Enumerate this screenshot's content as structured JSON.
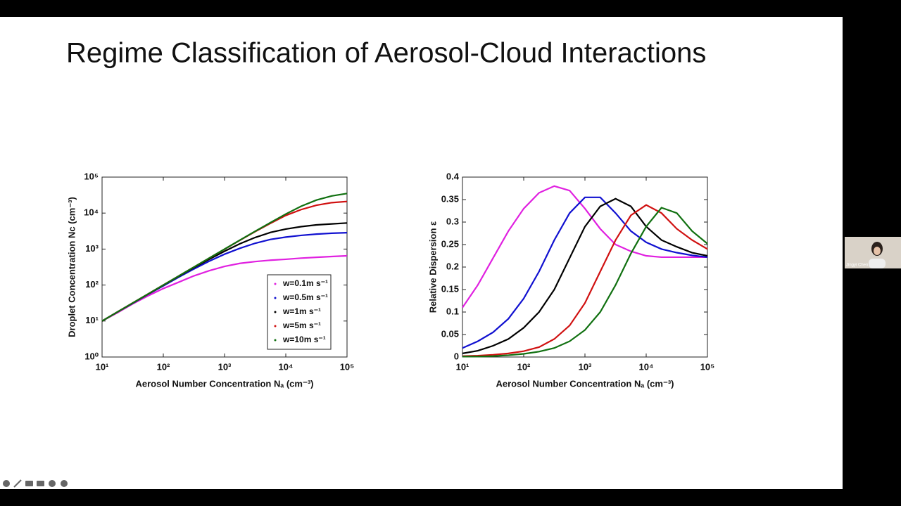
{
  "slide_title": "Regime Classification of Aerosol-Cloud Interactions",
  "participant_name": "Jingyi Chen",
  "chart_data": [
    {
      "type": "line",
      "xscale": "log",
      "yscale": "log",
      "xlabel": "Aerosol Number Concentration Nₐ (cm⁻³)",
      "ylabel": "Droplet Concentration Nc (cm⁻³)",
      "x": [
        10,
        17.8,
        31.6,
        56.2,
        100,
        178,
        316,
        562,
        1000,
        1778,
        3162,
        5623,
        10000,
        17783,
        31623,
        56234,
        100000
      ],
      "xlim": [
        10,
        100000
      ],
      "xticks": [
        {
          "value": 10,
          "label": "10¹"
        },
        {
          "value": 100,
          "label": "10²"
        },
        {
          "value": 1000,
          "label": "10³"
        },
        {
          "value": 10000,
          "label": "10⁴"
        },
        {
          "value": 100000,
          "label": "10⁵"
        }
      ],
      "ylim": [
        1,
        100000
      ],
      "yticks": [
        {
          "value": 1,
          "label": "10⁰"
        },
        {
          "value": 10,
          "label": "10¹"
        },
        {
          "value": 100,
          "label": "10²"
        },
        {
          "value": 1000,
          "label": "10³"
        },
        {
          "value": 10000,
          "label": "10⁴"
        },
        {
          "value": 100000,
          "label": "10⁵"
        }
      ],
      "legend": "lower right",
      "series": [
        {
          "name": "w=0.1m s⁻¹",
          "color": "#e020e0",
          "values": [
            10,
            17,
            30,
            50,
            80,
            120,
            180,
            250,
            330,
            400,
            450,
            490,
            520,
            560,
            590,
            620,
            650
          ]
        },
        {
          "name": "w=0.5m s⁻¹",
          "color": "#1010d0",
          "values": [
            10,
            17.8,
            31,
            55,
            95,
            165,
            280,
            460,
            720,
            1050,
            1450,
            1850,
            2150,
            2400,
            2600,
            2750,
            2850
          ]
        },
        {
          "name": "w=1m s⁻¹",
          "color": "#000000",
          "values": [
            10,
            17.8,
            31.6,
            56,
            99,
            175,
            305,
            520,
            870,
            1400,
            2100,
            2900,
            3600,
            4200,
            4700,
            5000,
            5300
          ]
        },
        {
          "name": "w=5m s⁻¹",
          "color": "#d01010",
          "values": [
            10,
            17.8,
            31.6,
            56,
            100,
            178,
            316,
            560,
            990,
            1750,
            3050,
            5200,
            8600,
            12500,
            16500,
            19500,
            21000
          ]
        },
        {
          "name": "w=10m s⁻¹",
          "color": "#107010",
          "values": [
            10,
            17.8,
            31.6,
            56.2,
            100,
            178,
            316,
            562,
            995,
            1770,
            3120,
            5450,
            9400,
            15500,
            23000,
            30000,
            35000
          ]
        }
      ]
    },
    {
      "type": "line",
      "xscale": "log",
      "yscale": "linear",
      "xlabel": "Aerosol Number Concentration Nₐ (cm⁻³)",
      "ylabel": "Relative Dispersion ε",
      "x": [
        10,
        17.8,
        31.6,
        56.2,
        100,
        178,
        316,
        562,
        1000,
        1778,
        3162,
        5623,
        10000,
        17783,
        31623,
        56234,
        100000
      ],
      "xlim": [
        10,
        100000
      ],
      "xticks": [
        {
          "value": 10,
          "label": "10¹"
        },
        {
          "value": 100,
          "label": "10²"
        },
        {
          "value": 1000,
          "label": "10³"
        },
        {
          "value": 10000,
          "label": "10⁴"
        },
        {
          "value": 100000,
          "label": "10⁵"
        }
      ],
      "ylim": [
        0,
        0.4
      ],
      "yticks": [
        0,
        0.05,
        0.1,
        0.15,
        0.2,
        0.25,
        0.3,
        0.35,
        0.4
      ],
      "series": [
        {
          "color": "#e020e0",
          "values": [
            0.11,
            0.16,
            0.22,
            0.28,
            0.33,
            0.365,
            0.38,
            0.37,
            0.33,
            0.285,
            0.25,
            0.235,
            0.225,
            0.222,
            0.222,
            0.222,
            0.222
          ]
        },
        {
          "color": "#1010d0",
          "values": [
            0.02,
            0.035,
            0.055,
            0.085,
            0.13,
            0.19,
            0.26,
            0.32,
            0.355,
            0.355,
            0.32,
            0.28,
            0.255,
            0.24,
            0.232,
            0.226,
            0.222
          ]
        },
        {
          "color": "#000000",
          "values": [
            0.008,
            0.014,
            0.025,
            0.04,
            0.065,
            0.1,
            0.15,
            0.22,
            0.29,
            0.335,
            0.352,
            0.335,
            0.29,
            0.26,
            0.245,
            0.232,
            0.225
          ]
        },
        {
          "color": "#d01010",
          "values": [
            0.002,
            0.003,
            0.005,
            0.008,
            0.013,
            0.022,
            0.04,
            0.07,
            0.12,
            0.19,
            0.26,
            0.315,
            0.338,
            0.32,
            0.285,
            0.26,
            0.24
          ]
        },
        {
          "color": "#107010",
          "values": [
            0.001,
            0.001,
            0.002,
            0.004,
            0.007,
            0.012,
            0.02,
            0.035,
            0.06,
            0.1,
            0.16,
            0.23,
            0.29,
            0.332,
            0.32,
            0.28,
            0.252
          ]
        }
      ]
    }
  ]
}
